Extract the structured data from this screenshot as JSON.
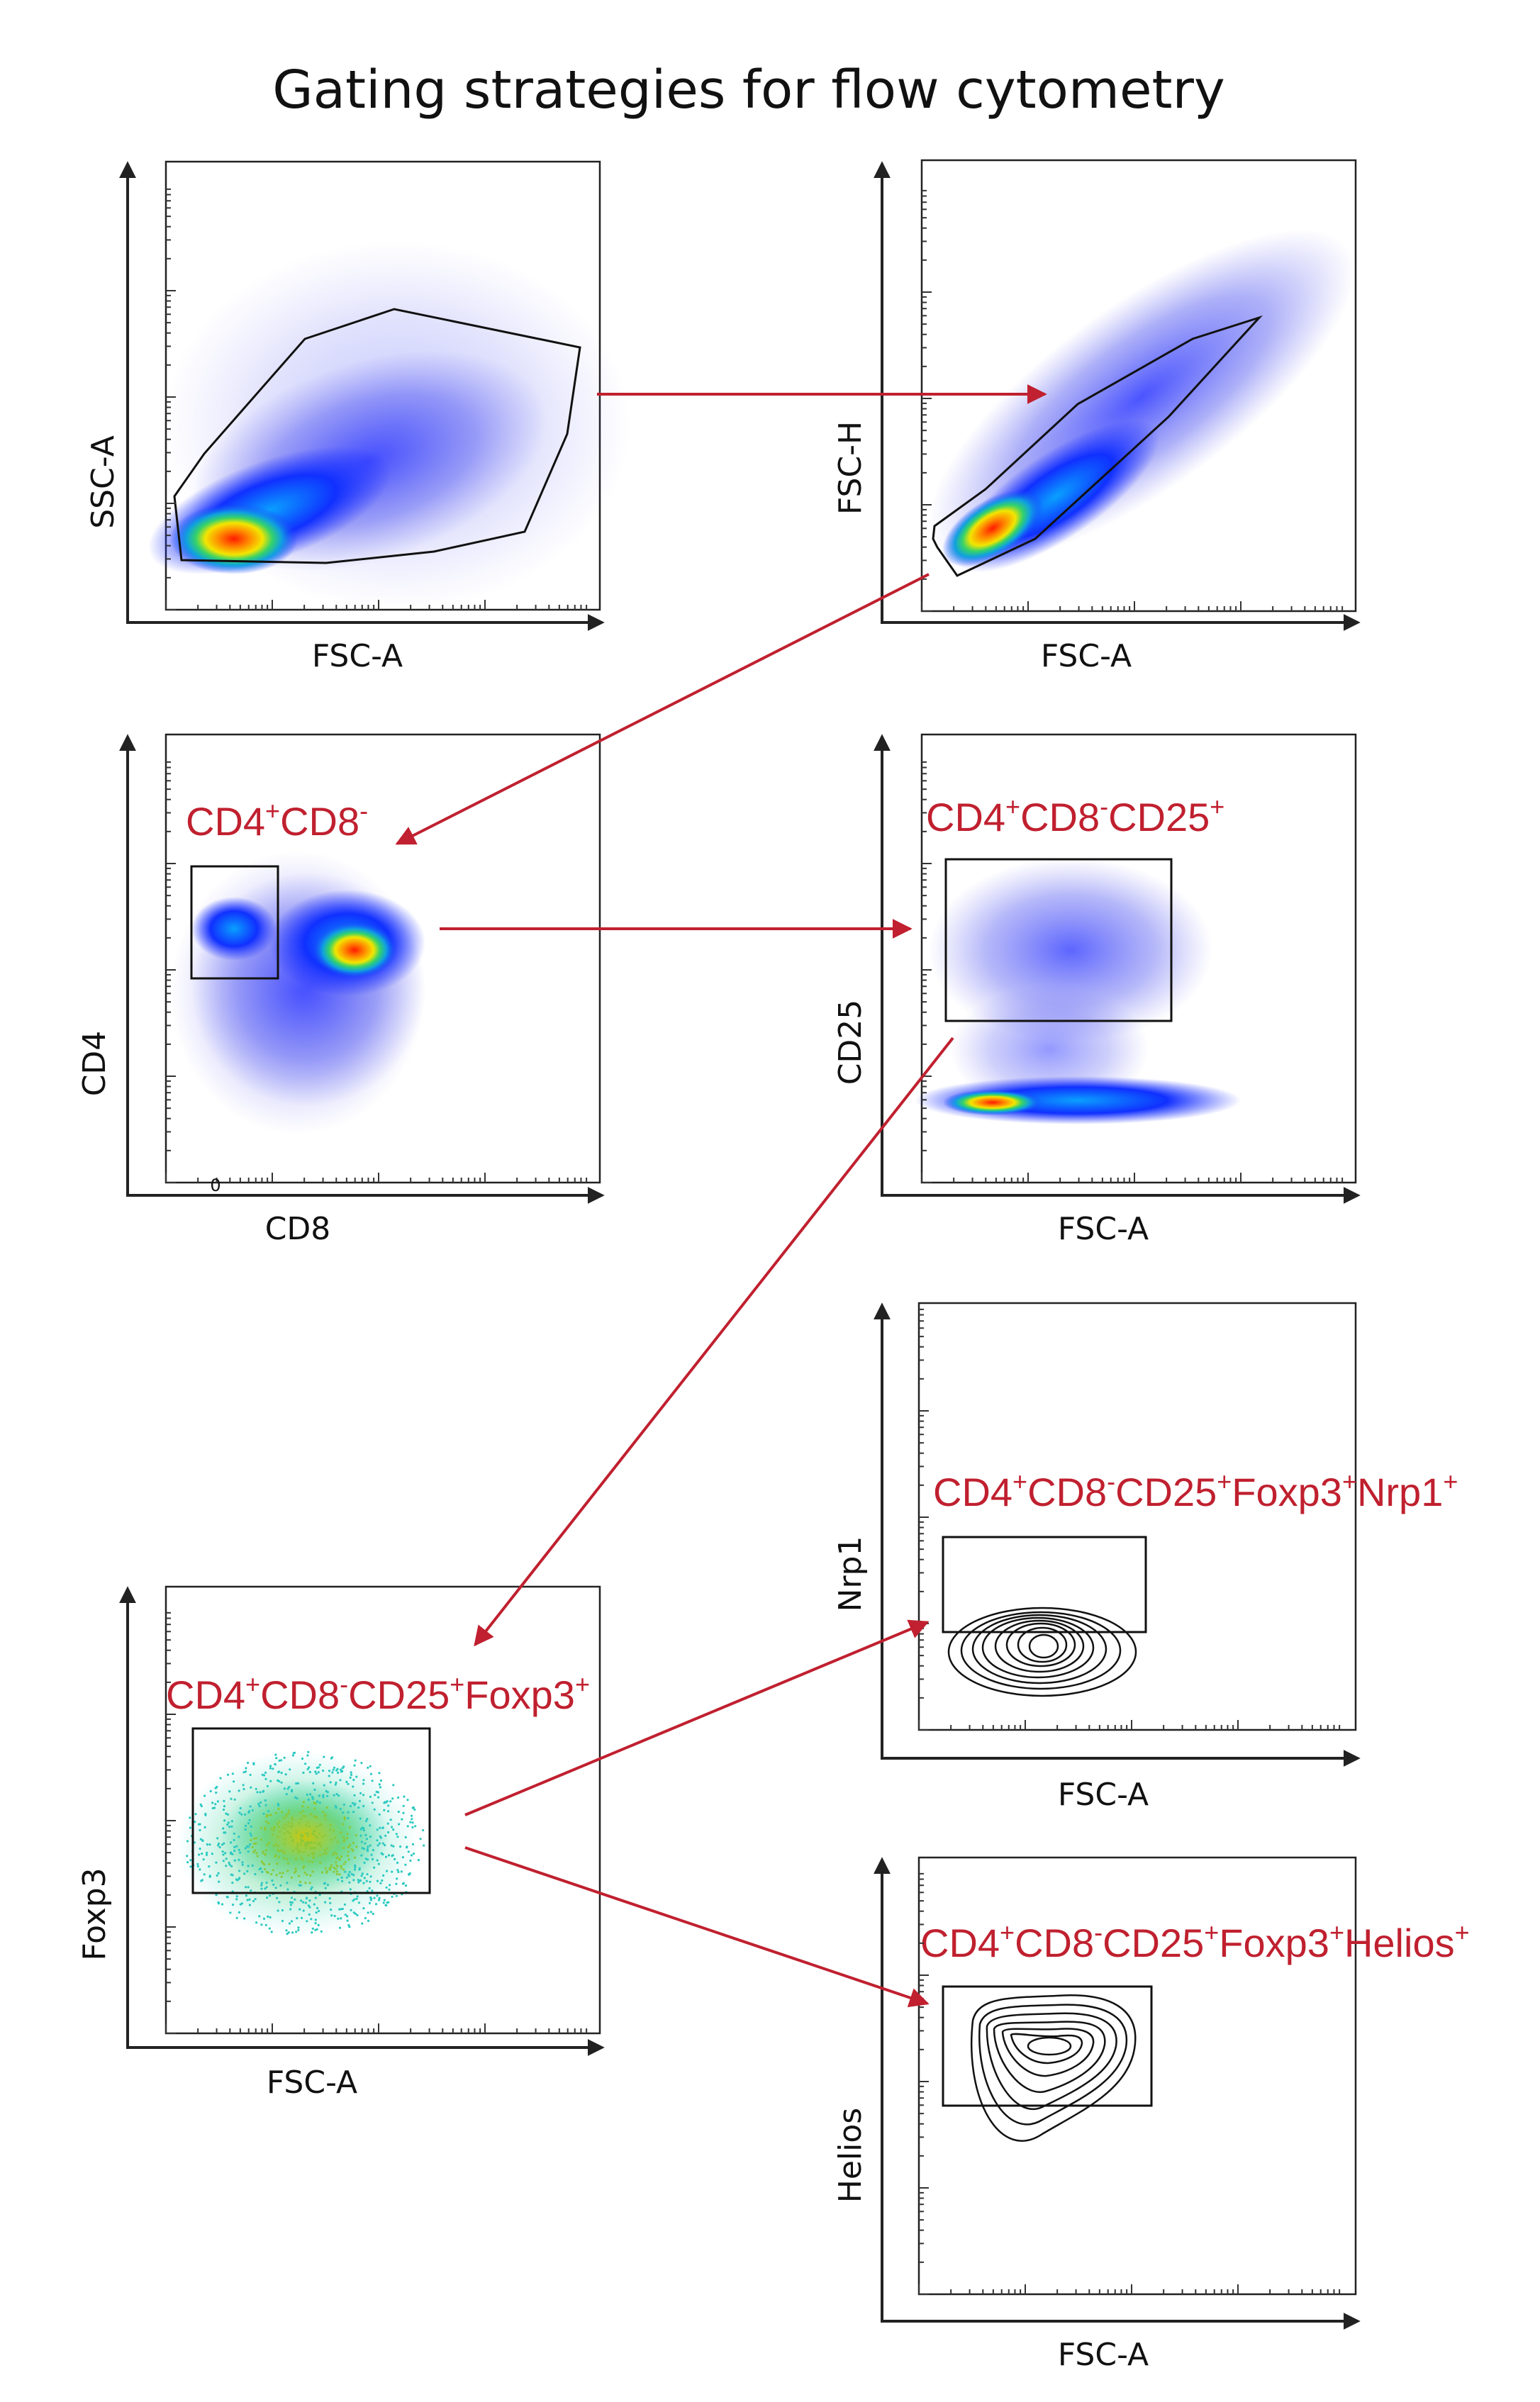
{
  "figure": {
    "title": "Gating strategies for flow cytometry"
  },
  "colors": {
    "arrow": "#c0202f",
    "gate": "#111111",
    "axis": "#222222"
  },
  "panels": [
    {
      "id": "p1",
      "x_label": "FSC-A",
      "y_label": "SSC-A",
      "plot": "density",
      "gate": "polygon",
      "population": ""
    },
    {
      "id": "p2",
      "x_label": "FSC-A",
      "y_label": "FSC-H",
      "plot": "density",
      "gate": "polygon",
      "population": ""
    },
    {
      "id": "p3",
      "x_label": "CD8",
      "y_label": "CD4",
      "plot": "density",
      "gate": "rectangle",
      "x_tick_zero": "0",
      "population": {
        "parts": [
          [
            "CD4",
            "+"
          ],
          [
            "CD8",
            "-"
          ]
        ]
      }
    },
    {
      "id": "p4",
      "x_label": "FSC-A",
      "y_label": "CD25",
      "plot": "density",
      "gate": "rectangle",
      "population": {
        "parts": [
          [
            "CD4",
            "+"
          ],
          [
            "CD8",
            "-"
          ],
          [
            "CD25",
            "+"
          ]
        ]
      }
    },
    {
      "id": "p5",
      "x_label": "FSC-A",
      "y_label": "Nrp1",
      "plot": "contour",
      "gate": "rectangle",
      "population": {
        "parts": [
          [
            "CD4",
            "+"
          ],
          [
            "CD8",
            "-"
          ],
          [
            "CD25",
            "+"
          ],
          [
            "Foxp3",
            "+"
          ],
          [
            "Nrp1",
            "+"
          ]
        ]
      }
    },
    {
      "id": "p6",
      "x_label": "FSC-A",
      "y_label": "Foxp3",
      "plot": "dot",
      "gate": "rectangle",
      "population": {
        "parts": [
          [
            "CD4",
            "+"
          ],
          [
            "CD8",
            "-"
          ],
          [
            "CD25",
            "+"
          ],
          [
            "Foxp3",
            "+"
          ]
        ]
      }
    },
    {
      "id": "p7",
      "x_label": "FSC-A",
      "y_label": "Helios",
      "plot": "contour",
      "gate": "rectangle",
      "population": {
        "parts": [
          [
            "CD4",
            "+"
          ],
          [
            "CD8",
            "-"
          ],
          [
            "CD25",
            "+"
          ],
          [
            "Foxp3",
            "+"
          ],
          [
            "Helios",
            "+"
          ]
        ]
      }
    }
  ],
  "flow_arrows": [
    {
      "from": "p1",
      "to": "p2"
    },
    {
      "from": "p2",
      "to": "p3"
    },
    {
      "from": "p3",
      "to": "p4"
    },
    {
      "from": "p4",
      "to": "p6"
    },
    {
      "from": "p6",
      "to": "p5"
    },
    {
      "from": "p6",
      "to": "p7"
    }
  ]
}
